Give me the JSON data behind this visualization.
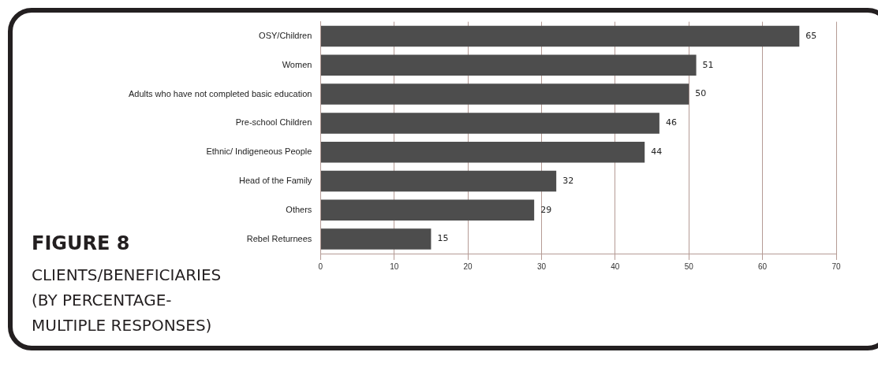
{
  "chart_data": {
    "type": "bar",
    "orientation": "horizontal",
    "title": "FIGURE 8",
    "subtitle": "CLIENTS/BENEFICIARIES (BY PERCENTAGE-MULTIPLE RESPONSES)",
    "categories": [
      "OSY/Children",
      "Women",
      "Adults who have not completed basic education",
      "Pre-school Children",
      "Ethnic/ Indigeneous People",
      "Head of the Family",
      "Others",
      "Rebel Returnees"
    ],
    "values": [
      65,
      51,
      50,
      46,
      44,
      32,
      29,
      15
    ],
    "color": "#4d4d4d",
    "xlim": [
      0,
      70
    ],
    "xticks": [
      0,
      10,
      20,
      30,
      40,
      50,
      60,
      70
    ],
    "grid": "x",
    "data_labels": true
  }
}
